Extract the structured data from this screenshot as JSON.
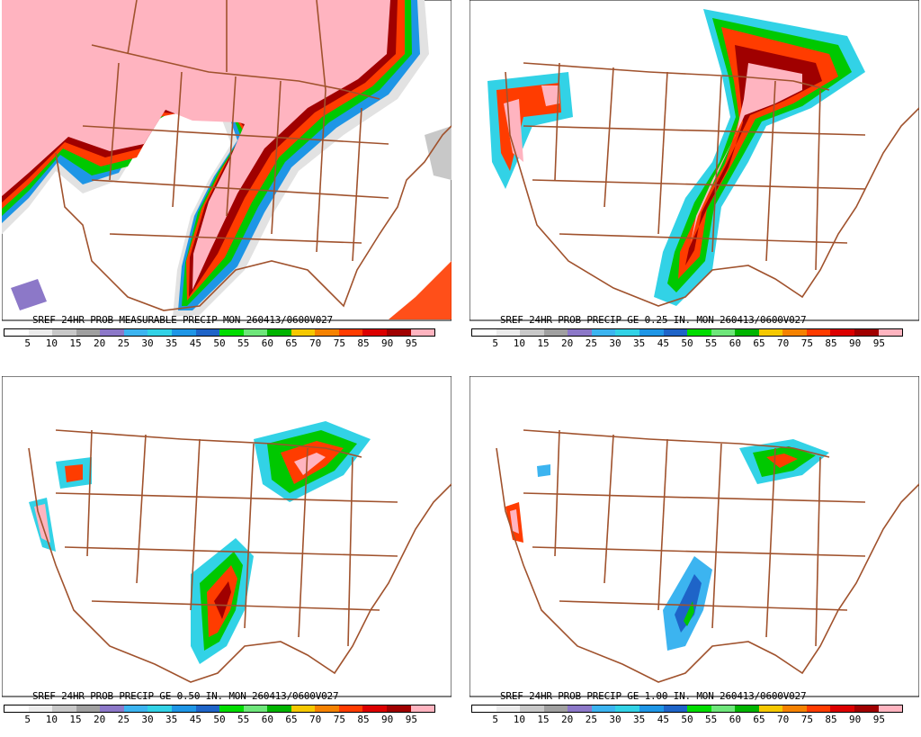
{
  "legend": {
    "labels": [
      "5",
      "10",
      "15",
      "20",
      "25",
      "30",
      "35",
      "45",
      "50",
      "55",
      "60",
      "65",
      "70",
      "75",
      "85",
      "90",
      "95"
    ],
    "colors": [
      "#ffffff",
      "#ececec",
      "#c8c8c8",
      "#a0a0a0",
      "#8c78c8",
      "#3cb4f0",
      "#32d2e6",
      "#1e96e6",
      "#1e64c8",
      "#00dc00",
      "#6ee67a",
      "#00b400",
      "#f5c800",
      "#f58200",
      "#ff3c00",
      "#dc0000",
      "#a00000",
      "#ffb4c0"
    ]
  },
  "map_colors": {
    "boundaries": "#a0522d"
  },
  "panels": [
    {
      "title": "SREF 24HR-PROB MEASURABLE PRECIP MON 260413/0600V027"
    },
    {
      "title": "SREF 24HR-PROB PRECIP GE 0.25 IN. MON 260413/0600V027"
    },
    {
      "title": "SREF 24HR-PROB PRECIP GE 0.50 IN. MON 260413/0600V027"
    },
    {
      "title": "SREF 24HR-PROB PRECIP GE 1.00 IN. MON 260413/0600V027"
    }
  ]
}
